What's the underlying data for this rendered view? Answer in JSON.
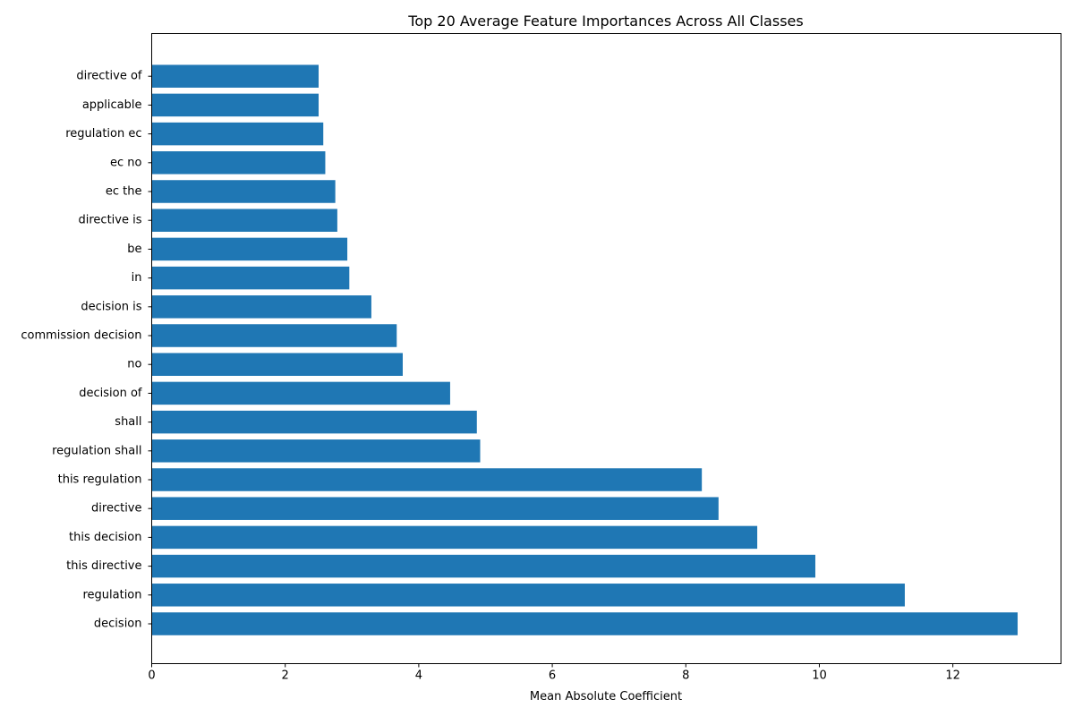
{
  "chart_data": {
    "type": "bar",
    "orientation": "horizontal",
    "title": "Top 20 Average Feature Importances Across All Classes",
    "xlabel": "Mean Absolute Coefficient",
    "ylabel": "",
    "xlim": [
      0,
      13.62
    ],
    "xticks": [
      0,
      2,
      4,
      6,
      8,
      10,
      12
    ],
    "grid": false,
    "bar_color": "#1f77b4",
    "categories": [
      "decision",
      "regulation",
      "this directive",
      "this decision",
      "directive",
      "this regulation",
      "regulation shall",
      "shall",
      "decision of",
      "no",
      "commission decision",
      "decision is",
      "in",
      "be",
      "directive is",
      "ec the",
      "ec no",
      "regulation ec",
      "applicable",
      "directive of"
    ],
    "values": [
      12.97,
      11.28,
      9.94,
      9.07,
      8.49,
      8.24,
      4.92,
      4.87,
      4.47,
      3.76,
      3.67,
      3.29,
      2.96,
      2.93,
      2.78,
      2.75,
      2.6,
      2.57,
      2.5,
      2.5
    ]
  }
}
